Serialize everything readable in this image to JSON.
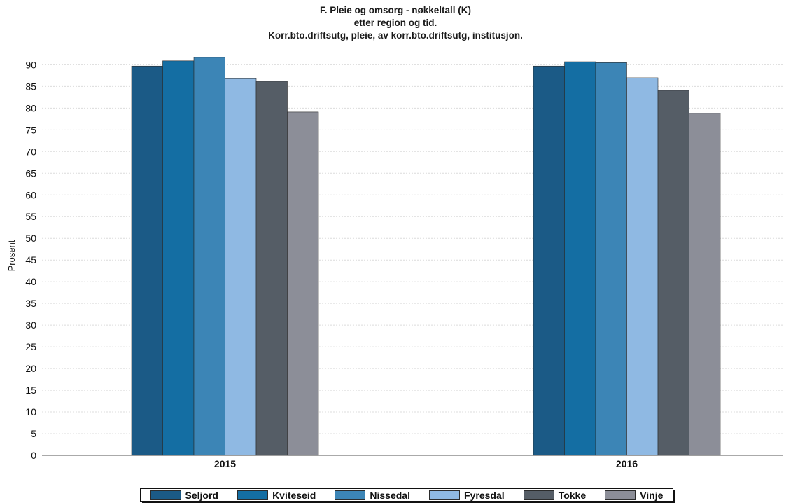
{
  "header": {
    "title_line1": "F. Pleie og omsorg - nøkkeltall (K)",
    "title_line2": "etter region og tid.",
    "title_line3": "Korr.bto.driftsutg, pleie, av korr.bto.driftsutg, institusjon."
  },
  "chart_data": {
    "type": "bar",
    "title": "F. Pleie og omsorg - nøkkeltall (K)",
    "subtitle": "etter region og tid. Korr.bto.driftsutg, pleie, av korr.bto.driftsutg, institusjon.",
    "xlabel": "",
    "ylabel": "Prosent",
    "ylim": [
      0,
      92
    ],
    "yticks": [
      0,
      5,
      10,
      15,
      20,
      25,
      30,
      35,
      40,
      45,
      50,
      55,
      60,
      65,
      70,
      75,
      80,
      85,
      90
    ],
    "categories": [
      "2015",
      "2016"
    ],
    "series": [
      {
        "name": "Seljord",
        "color": "#1b5a86",
        "values": [
          89.7,
          89.7
        ]
      },
      {
        "name": "Kviteseid",
        "color": "#146ea3",
        "values": [
          90.9,
          90.7
        ]
      },
      {
        "name": "Nissedal",
        "color": "#3c85b6",
        "values": [
          91.7,
          90.5
        ]
      },
      {
        "name": "Fyresdal",
        "color": "#8fb9e3",
        "values": [
          86.8,
          87.0
        ]
      },
      {
        "name": "Tokke",
        "color": "#555d66",
        "values": [
          86.2,
          84.1
        ]
      },
      {
        "name": "Vinje",
        "color": "#8c8e98",
        "values": [
          79.1,
          78.8
        ]
      }
    ],
    "grid": true,
    "legend_position": "bottom"
  }
}
